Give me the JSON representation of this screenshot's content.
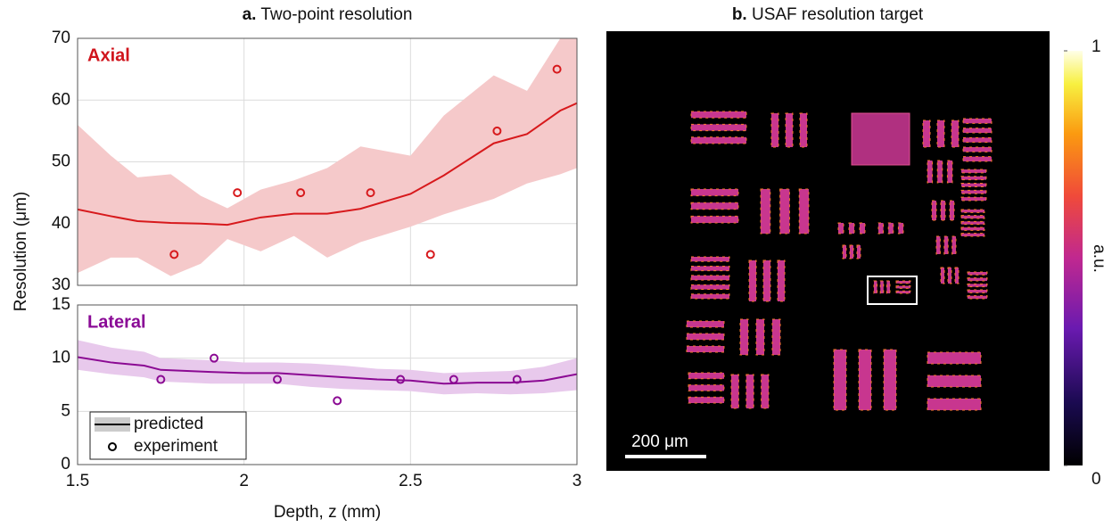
{
  "chart_data": [
    {
      "type": "line",
      "panel": "a.",
      "title": "Two-point resolution",
      "ylabel": "Resolution (μm)",
      "label": "Axial",
      "label_color": "#d0141c",
      "xlim": [
        1.5,
        3
      ],
      "ylim": [
        30,
        70
      ],
      "yticks": [
        30,
        40,
        50,
        60,
        70
      ],
      "grid": true,
      "series": [
        {
          "type": "line",
          "color": "#d7191c",
          "band_color": "#f5c9ca",
          "x": [
            1.5,
            1.6,
            1.68,
            1.78,
            1.87,
            1.95,
            2.05,
            2.15,
            2.25,
            2.35,
            2.5,
            2.6,
            2.75,
            2.85,
            2.95,
            3
          ],
          "values": [
            42.3,
            41.2,
            40.4,
            40.1,
            40,
            39.8,
            41,
            41.6,
            41.6,
            42.4,
            44.8,
            47.8,
            53,
            54.5,
            58.3,
            59.5
          ],
          "band_upper": [
            56,
            51,
            47.5,
            48,
            44.5,
            42.5,
            45.5,
            47,
            49,
            52.5,
            51,
            57.5,
            64,
            61.5,
            70,
            70
          ],
          "band_lower": [
            32,
            34.5,
            34.5,
            31.5,
            33.5,
            37.5,
            35.5,
            38,
            34.5,
            37,
            39.5,
            41.5,
            44,
            46.5,
            48,
            49
          ]
        },
        {
          "type": "scatter",
          "color": "#d7191c",
          "x": [
            1.79,
            1.98,
            2.17,
            2.38,
            2.56,
            2.76,
            2.94
          ],
          "values": [
            35,
            45,
            45,
            45,
            35,
            55,
            65
          ]
        }
      ]
    },
    {
      "type": "line",
      "xlabel": "Depth, z (mm)",
      "label": "Lateral",
      "label_color": "#8a0a96",
      "xlim": [
        1.5,
        3
      ],
      "xticks": [
        1.5,
        2,
        2.5,
        3
      ],
      "ylim": [
        0,
        15
      ],
      "yticks": [
        0,
        5,
        10,
        15
      ],
      "grid": true,
      "legend": "lower left",
      "series": [
        {
          "name": "predicted",
          "type": "line",
          "color": "#8b0a93",
          "band_color": "#e8c9ec",
          "x": [
            1.5,
            1.6,
            1.7,
            1.75,
            1.9,
            2,
            2.1,
            2.2,
            2.3,
            2.4,
            2.5,
            2.6,
            2.7,
            2.8,
            2.9,
            3
          ],
          "values": [
            10.1,
            9.6,
            9.3,
            8.9,
            8.7,
            8.6,
            8.6,
            8.4,
            8.2,
            8,
            7.9,
            7.6,
            7.7,
            7.7,
            7.9,
            8.5
          ],
          "band_upper": [
            11.7,
            11,
            10.6,
            10,
            9.8,
            9.6,
            9.6,
            9.5,
            9.3,
            9,
            8.9,
            8.6,
            8.7,
            8.8,
            9.2,
            10
          ],
          "band_lower": [
            8.9,
            8.5,
            8.2,
            7.8,
            7.6,
            7.6,
            7.6,
            7.3,
            7.1,
            7,
            6.9,
            6.6,
            6.7,
            6.6,
            6.7,
            7
          ]
        },
        {
          "name": "experiment",
          "type": "scatter",
          "color": "#8b0a93",
          "x": [
            1.75,
            1.91,
            2.1,
            2.28,
            2.47,
            2.63,
            2.82
          ],
          "values": [
            8,
            10,
            8,
            6,
            8,
            8,
            8
          ]
        }
      ]
    },
    {
      "type": "image",
      "panel": "b.",
      "title": "USAF resolution target",
      "colorbar_label": "a.u.",
      "clim": [
        0,
        1
      ],
      "cticks": [
        0,
        1
      ],
      "scalebar": "200 μm"
    }
  ]
}
